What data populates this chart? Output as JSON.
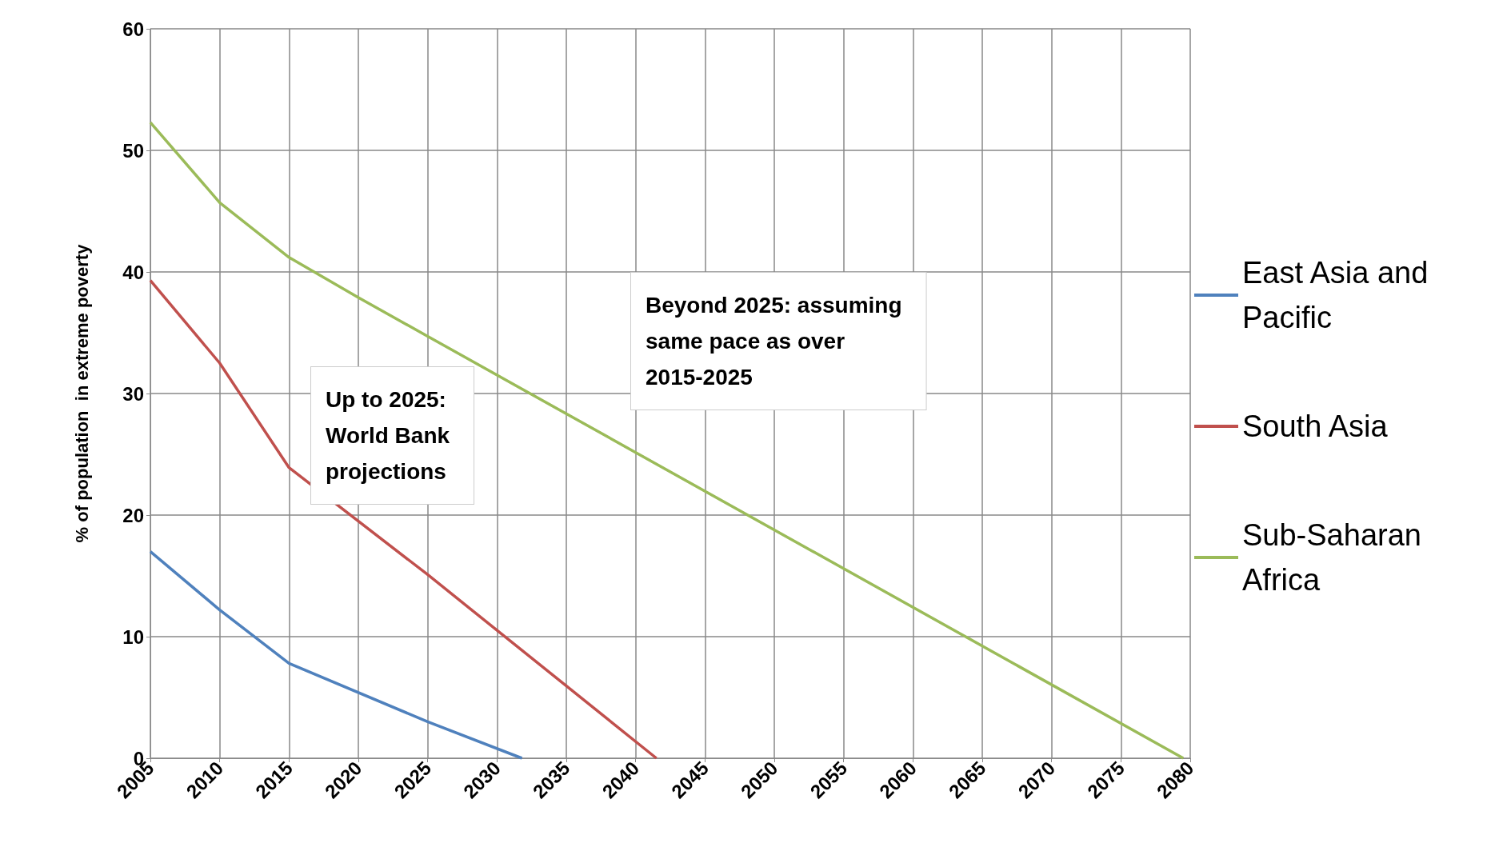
{
  "chart_data": {
    "type": "line",
    "ylabel": "% of population  in extreme poverty",
    "xlim": [
      2005,
      2080
    ],
    "xticks": [
      2005,
      2010,
      2015,
      2020,
      2025,
      2030,
      2035,
      2040,
      2045,
      2050,
      2055,
      2060,
      2065,
      2070,
      2075,
      2080
    ],
    "ylim": [
      0,
      60
    ],
    "yticks": [
      0,
      10,
      20,
      30,
      40,
      50,
      60
    ],
    "series": [
      {
        "name": "East Asia and Pacific",
        "color": "#4f81bd",
        "x": [
          2005,
          2010,
          2015,
          2025,
          2031.8
        ],
        "values": [
          17.0,
          12.2,
          7.8,
          3.0,
          0
        ]
      },
      {
        "name": "South Asia",
        "color": "#c0504d",
        "x": [
          2005,
          2010,
          2015,
          2025,
          2041.5
        ],
        "values": [
          39.3,
          32.5,
          23.9,
          15.1,
          0
        ]
      },
      {
        "name": "Sub-Saharan Africa",
        "color": "#9bbb59",
        "x": [
          2005,
          2010,
          2015,
          2020,
          2025,
          2079.5
        ],
        "values": [
          52.3,
          45.7,
          41.2,
          37.9,
          34.7,
          0
        ]
      }
    ],
    "annotations": [
      "Up to 2025:\nWorld Bank\nprojections",
      "Beyond 2025: assuming\nsame pace as over\n2015-2025"
    ],
    "grid": true,
    "legend": "right",
    "marker": "none",
    "line_style": "solid"
  }
}
